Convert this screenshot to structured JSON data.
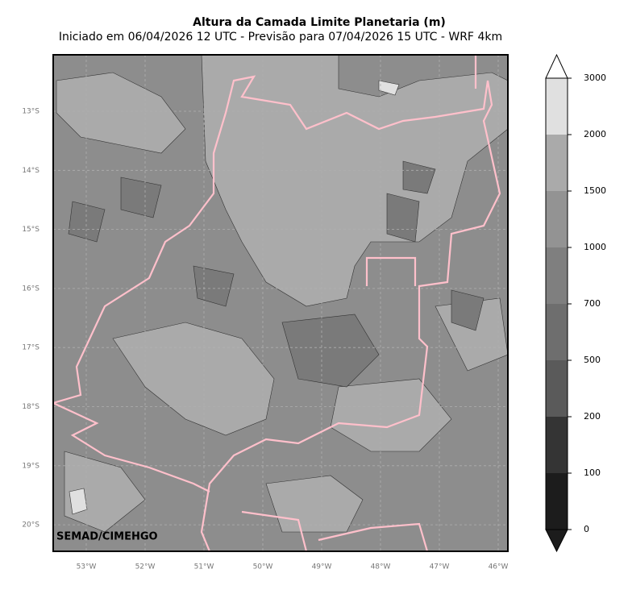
{
  "header": {
    "title": "Altura da Camada Limite Planetaria (m)",
    "subtitle": "Iniciado em 06/04/2026 12 UTC - Previsão para 07/04/2026 15 UTC - WRF 4km"
  },
  "map": {
    "latitude_labels": [
      "13°S",
      "14°S",
      "15°S",
      "16°S",
      "17°S",
      "18°S",
      "19°S",
      "20°S"
    ],
    "longitude_labels": [
      "53°W",
      "52°W",
      "51°W",
      "50°W",
      "49°W",
      "48°W",
      "47°W",
      "46°W"
    ],
    "credit": "SEMAD/CIMEHGO"
  },
  "colorbar": {
    "ticks": [
      0,
      100,
      200,
      500,
      700,
      1000,
      1500,
      2000,
      3000
    ],
    "colors": [
      "#1c1c1c",
      "#343434",
      "#5a5a5a",
      "#6e6e6e",
      "#7f7f7f",
      "#939393",
      "#aaaaaa",
      "#e0e0e0"
    ]
  }
}
